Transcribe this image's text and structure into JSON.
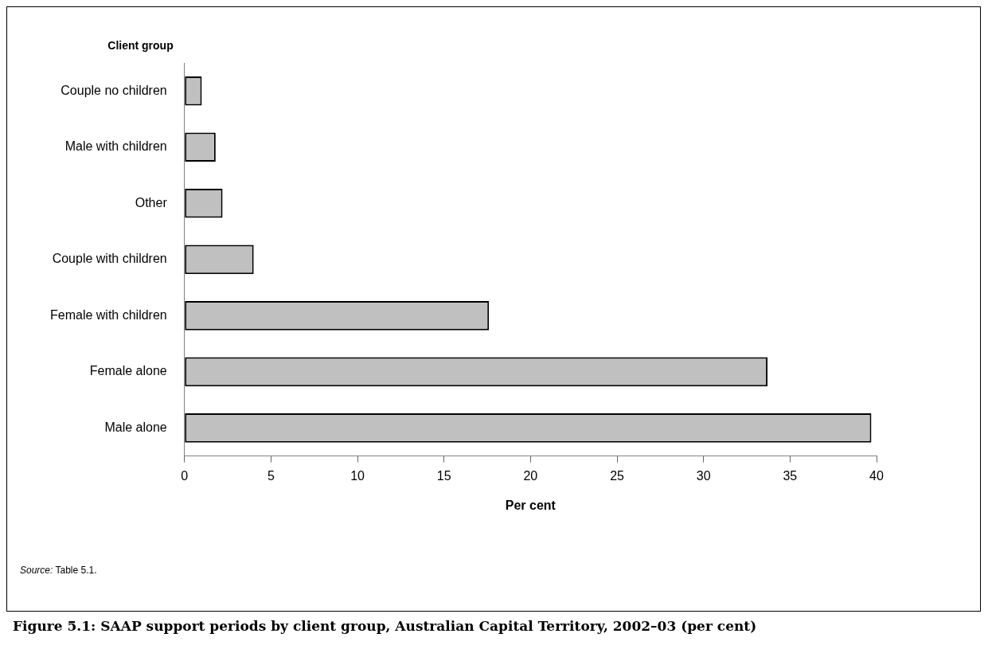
{
  "chart_data": {
    "type": "bar",
    "orientation": "horizontal",
    "title": "Figure 5.1: SAAP support periods by client group, Australian Capital Territory, 2002–03 (per cent)",
    "xlabel": "Per cent",
    "ylabel": "Client group",
    "categories": [
      "Couple no children",
      "Male with children",
      "Other",
      "Couple with children",
      "Female with children",
      "Female alone",
      "Male alone"
    ],
    "values": [
      1.0,
      1.8,
      2.2,
      4.0,
      17.6,
      33.7,
      39.7
    ],
    "color": "#c0c0c0",
    "xlim": [
      0,
      40
    ],
    "xticks": [
      0,
      5,
      10,
      15,
      20,
      25,
      30,
      35,
      40
    ],
    "grid": false,
    "legend": false,
    "annotations": [
      "Source: Table 5.1."
    ]
  }
}
